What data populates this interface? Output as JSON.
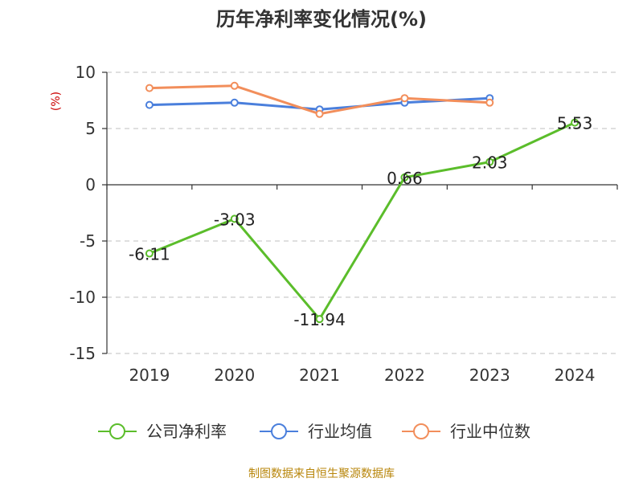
{
  "chart_data": {
    "type": "line",
    "title": "历年净利率变化情况(%)",
    "ylabel": "(%)",
    "xlabel": "",
    "categories": [
      "2019",
      "2020",
      "2021",
      "2022",
      "2023",
      "2024"
    ],
    "ylim": [
      -15,
      10
    ],
    "yticks": [
      10,
      5,
      0,
      -5,
      -10,
      -15
    ],
    "grid": true,
    "legend_position": "bottom",
    "series": [
      {
        "name": "公司净利率",
        "color": "#5bbd2b",
        "values": [
          -6.11,
          -3.03,
          -11.94,
          0.66,
          2.03,
          5.53
        ],
        "labels": [
          "-6.11",
          "-3.03",
          "-11.94",
          "0.66",
          "2.03",
          "5.53"
        ]
      },
      {
        "name": "行业均值",
        "color": "#4a7fdc",
        "values": [
          7.1,
          7.3,
          6.7,
          7.3,
          7.7,
          null
        ],
        "labels": []
      },
      {
        "name": "行业中位数",
        "color": "#f28e5b",
        "values": [
          8.6,
          8.8,
          6.3,
          7.7,
          7.3,
          null
        ],
        "labels": []
      }
    ]
  },
  "source": "制图数据来自恒生聚源数据库"
}
